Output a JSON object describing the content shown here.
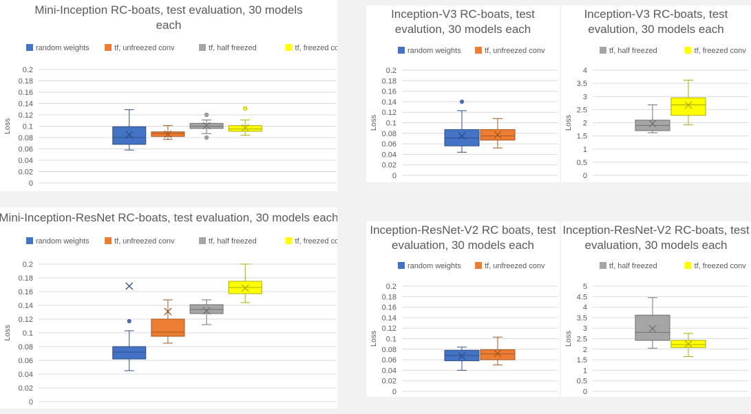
{
  "colors": {
    "random weights": "#4472c4",
    "tf, unfreezed conv": "#ed7d31",
    "tf, half freezed": "#a5a5a5",
    "tf, freezed conv": "#ffff00"
  },
  "chart_data": [
    {
      "type": "box",
      "title_lines": [
        "Mini-Inception RC-boats, test evaluation, 30 models",
        "each"
      ],
      "ylabel": "Loss",
      "ylim": [
        0,
        0.2
      ],
      "ytick_step": 0.02,
      "yticks": [
        "0",
        "0.02",
        "0.04",
        "0.06",
        "0.08",
        "0.1",
        "0.12",
        "0.14",
        "0.16",
        "0.18",
        "0.2"
      ],
      "grid": true,
      "legend_position": "top",
      "series": [
        {
          "name": "random weights",
          "min": 0.058,
          "q1": 0.068,
          "median": 0.08,
          "q3": 0.099,
          "max": 0.129,
          "mean": 0.085,
          "outliers": []
        },
        {
          "name": "tf, unfreezed conv",
          "min": 0.077,
          "q1": 0.082,
          "median": 0.087,
          "q3": 0.09,
          "max": 0.101,
          "mean": 0.086,
          "outliers": []
        },
        {
          "name": "tf, half freezed",
          "min": 0.087,
          "q1": 0.096,
          "median": 0.1,
          "q3": 0.105,
          "max": 0.111,
          "mean": 0.101,
          "outliers": [
            0.08,
            0.12
          ]
        },
        {
          "name": "tf, freezed conv",
          "min": 0.084,
          "q1": 0.091,
          "median": 0.095,
          "q3": 0.101,
          "max": 0.111,
          "mean": 0.097,
          "outliers": [
            0.131
          ]
        }
      ]
    },
    {
      "type": "box",
      "title_lines": [
        "Inception-V3 RC-boats, test",
        "evalution, 30 models each"
      ],
      "ylabel": "Loss",
      "ylim": [
        0,
        0.2
      ],
      "ytick_step": 0.02,
      "yticks": [
        "0",
        "0.02",
        "0.04",
        "0.06",
        "0.08",
        "0.1",
        "0.12",
        "0.14",
        "0.16",
        "0.18",
        "0.2"
      ],
      "grid": true,
      "legend_position": "top",
      "series": [
        {
          "name": "random weights",
          "min": 0.044,
          "q1": 0.056,
          "median": 0.071,
          "q3": 0.087,
          "max": 0.123,
          "mean": 0.075,
          "outliers": [
            0.14
          ]
        },
        {
          "name": "tf, unfreezed conv",
          "min": 0.052,
          "q1": 0.067,
          "median": 0.075,
          "q3": 0.087,
          "max": 0.108,
          "mean": 0.077,
          "outliers": []
        }
      ]
    },
    {
      "type": "box",
      "title_lines": [
        "Inception-V3 RC-boats, test",
        "evalution, 30 models each"
      ],
      "ylabel": "Loss",
      "ylim": [
        0,
        4
      ],
      "ytick_step": 0.5,
      "yticks": [
        "0",
        "0.5",
        "1",
        "1.5",
        "2",
        "2.5",
        "3",
        "3.5",
        "4"
      ],
      "grid": true,
      "legend_position": "top",
      "series": [
        {
          "name": "tf, half freezed",
          "min": 1.62,
          "q1": 1.7,
          "median": 1.9,
          "q3": 2.1,
          "max": 2.68,
          "mean": 1.97,
          "outliers": []
        },
        {
          "name": "tf, freezed conv",
          "min": 1.92,
          "q1": 2.28,
          "median": 2.68,
          "q3": 2.95,
          "max": 3.62,
          "mean": 2.67,
          "outliers": []
        }
      ]
    },
    {
      "type": "box",
      "title_lines": [
        "Mini-Inception-ResNet RC-boats, test evaluation, 30 models each"
      ],
      "ylabel": "Loss",
      "ylim": [
        0,
        0.2
      ],
      "ytick_step": 0.02,
      "yticks": [
        "0",
        "0.02",
        "0.04",
        "0.06",
        "0.08",
        "0.1",
        "0.12",
        "0.14",
        "0.16",
        "0.18",
        "0.2"
      ],
      "grid": true,
      "legend_position": "top",
      "series": [
        {
          "name": "random weights",
          "min": 0.045,
          "q1": 0.062,
          "median": 0.072,
          "q3": 0.08,
          "max": 0.103,
          "mean": 0.168,
          "outliers": [
            0.117
          ]
        },
        {
          "name": "tf, unfreezed conv",
          "min": 0.085,
          "q1": 0.095,
          "median": 0.101,
          "q3": 0.12,
          "max": 0.148,
          "mean": 0.131,
          "outliers": []
        },
        {
          "name": "tf, half freezed",
          "min": 0.112,
          "q1": 0.128,
          "median": 0.134,
          "q3": 0.141,
          "max": 0.148,
          "mean": 0.132,
          "outliers": []
        },
        {
          "name": "tf, freezed conv",
          "min": 0.144,
          "q1": 0.157,
          "median": 0.166,
          "q3": 0.175,
          "max": 0.2,
          "mean": 0.165,
          "outliers": []
        }
      ]
    },
    {
      "type": "box",
      "title_lines": [
        "Inception-ResNet-V2 RC boats, test",
        "evaluation, 30 models each"
      ],
      "ylabel": "Loss",
      "ylim": [
        0,
        0.2
      ],
      "ytick_step": 0.02,
      "yticks": [
        "0",
        "0.02",
        "0.04",
        "0.06",
        "0.08",
        "0.1",
        "0.12",
        "0.14",
        "0.16",
        "0.18",
        "0.2"
      ],
      "grid": true,
      "legend_position": "top",
      "series": [
        {
          "name": "random weights",
          "min": 0.04,
          "q1": 0.058,
          "median": 0.068,
          "q3": 0.078,
          "max": 0.084,
          "mean": 0.067,
          "outliers": []
        },
        {
          "name": "tf, unfreezed conv",
          "min": 0.05,
          "q1": 0.06,
          "median": 0.071,
          "q3": 0.079,
          "max": 0.103,
          "mean": 0.072,
          "outliers": []
        }
      ]
    },
    {
      "type": "box",
      "title_lines": [
        "Inception-ResNet-V2 RC-boats, test",
        "evaluation, 30 models each"
      ],
      "ylabel": "Loss",
      "ylim": [
        0,
        5
      ],
      "ytick_step": 0.5,
      "yticks": [
        "0",
        "0.5",
        "1",
        "1.5",
        "2",
        "2.5",
        "3",
        "3.5",
        "4",
        "4.5",
        "5"
      ],
      "grid": true,
      "legend_position": "top",
      "series": [
        {
          "name": "tf, half freezed",
          "min": 2.05,
          "q1": 2.42,
          "median": 2.8,
          "q3": 3.62,
          "max": 4.45,
          "mean": 2.98,
          "outliers": []
        },
        {
          "name": "tf, freezed conv",
          "min": 1.65,
          "q1": 2.08,
          "median": 2.22,
          "q3": 2.42,
          "max": 2.75,
          "mean": 2.25,
          "outliers": []
        }
      ]
    }
  ]
}
